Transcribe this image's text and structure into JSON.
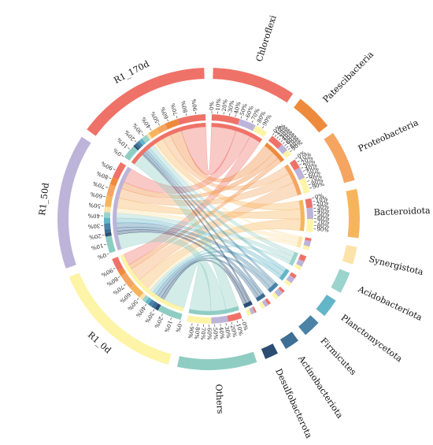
{
  "chart_data": {
    "type": "chord",
    "title": "",
    "sample_segments": [
      {
        "name": "R1_170d",
        "color": "#ef7268"
      },
      {
        "name": "R1_50d",
        "color": "#bcb4d9"
      },
      {
        "name": "R1_0d",
        "color": "#fdf4a7"
      }
    ],
    "taxa_segments": [
      {
        "name": "Chloroflexi",
        "color": "#ef7268"
      },
      {
        "name": "Patescibacteria",
        "color": "#ee8a3c"
      },
      {
        "name": "Proteobacteria",
        "color": "#f5a560"
      },
      {
        "name": "Bacteroidota",
        "color": "#f6b55d"
      },
      {
        "name": "Synergistota",
        "color": "#fde3a9"
      },
      {
        "name": "Acidobacteriota",
        "color": "#9bd3cd"
      },
      {
        "name": "Planctomycetota",
        "color": "#63b5c8"
      },
      {
        "name": "Firmicutes",
        "color": "#4a83a6"
      },
      {
        "name": "Actinobacteriota",
        "color": "#3d6e94"
      },
      {
        "name": "Desulfobacterota",
        "color": "#2c4d73"
      },
      {
        "name": "Others",
        "color": "#8fcdc3"
      }
    ],
    "percent_ticks": [
      "0%",
      "10%",
      "20%",
      "30%",
      "40%",
      "50%",
      "60%",
      "70%",
      "80%",
      "90%"
    ],
    "flows": [
      {
        "from": "R1_170d",
        "to": "Chloroflexi",
        "value": 30
      },
      {
        "from": "R1_170d",
        "to": "Patescibacteria",
        "value": 14
      },
      {
        "from": "R1_170d",
        "to": "Proteobacteria",
        "value": 10
      },
      {
        "from": "R1_170d",
        "to": "Bacteroidota",
        "value": 10
      },
      {
        "from": "R1_170d",
        "to": "Synergistota",
        "value": 3
      },
      {
        "from": "R1_170d",
        "to": "Acidobacteriota",
        "value": 6
      },
      {
        "from": "R1_170d",
        "to": "Planctomycetota",
        "value": 4
      },
      {
        "from": "R1_170d",
        "to": "Firmicutes",
        "value": 3
      },
      {
        "from": "R1_170d",
        "to": "Actinobacteriota",
        "value": 3
      },
      {
        "from": "R1_170d",
        "to": "Desulfobacterota",
        "value": 2
      },
      {
        "from": "R1_170d",
        "to": "Others",
        "value": 15
      },
      {
        "from": "R1_50d",
        "to": "Chloroflexi",
        "value": 18
      },
      {
        "from": "R1_50d",
        "to": "Patescibacteria",
        "value": 8
      },
      {
        "from": "R1_50d",
        "to": "Proteobacteria",
        "value": 12
      },
      {
        "from": "R1_50d",
        "to": "Bacteroidota",
        "value": 12
      },
      {
        "from": "R1_50d",
        "to": "Synergistota",
        "value": 6
      },
      {
        "from": "R1_50d",
        "to": "Acidobacteriota",
        "value": 6
      },
      {
        "from": "R1_50d",
        "to": "Planctomycetota",
        "value": 6
      },
      {
        "from": "R1_50d",
        "to": "Firmicutes",
        "value": 6
      },
      {
        "from": "R1_50d",
        "to": "Actinobacteriota",
        "value": 4
      },
      {
        "from": "R1_50d",
        "to": "Desulfobacterota",
        "value": 4
      },
      {
        "from": "R1_50d",
        "to": "Others",
        "value": 18
      },
      {
        "from": "R1_0d",
        "to": "Chloroflexi",
        "value": 14
      },
      {
        "from": "R1_0d",
        "to": "Patescibacteria",
        "value": 6
      },
      {
        "from": "R1_0d",
        "to": "Proteobacteria",
        "value": 16
      },
      {
        "from": "R1_0d",
        "to": "Bacteroidota",
        "value": 14
      },
      {
        "from": "R1_0d",
        "to": "Synergistota",
        "value": 4
      },
      {
        "from": "R1_0d",
        "to": "Acidobacteriota",
        "value": 4
      },
      {
        "from": "R1_0d",
        "to": "Planctomycetota",
        "value": 4
      },
      {
        "from": "R1_0d",
        "to": "Firmicutes",
        "value": 4
      },
      {
        "from": "R1_0d",
        "to": "Actinobacteriota",
        "value": 4
      },
      {
        "from": "R1_0d",
        "to": "Desulfobacterota",
        "value": 4
      },
      {
        "from": "R1_0d",
        "to": "Others",
        "value": 26
      }
    ]
  }
}
